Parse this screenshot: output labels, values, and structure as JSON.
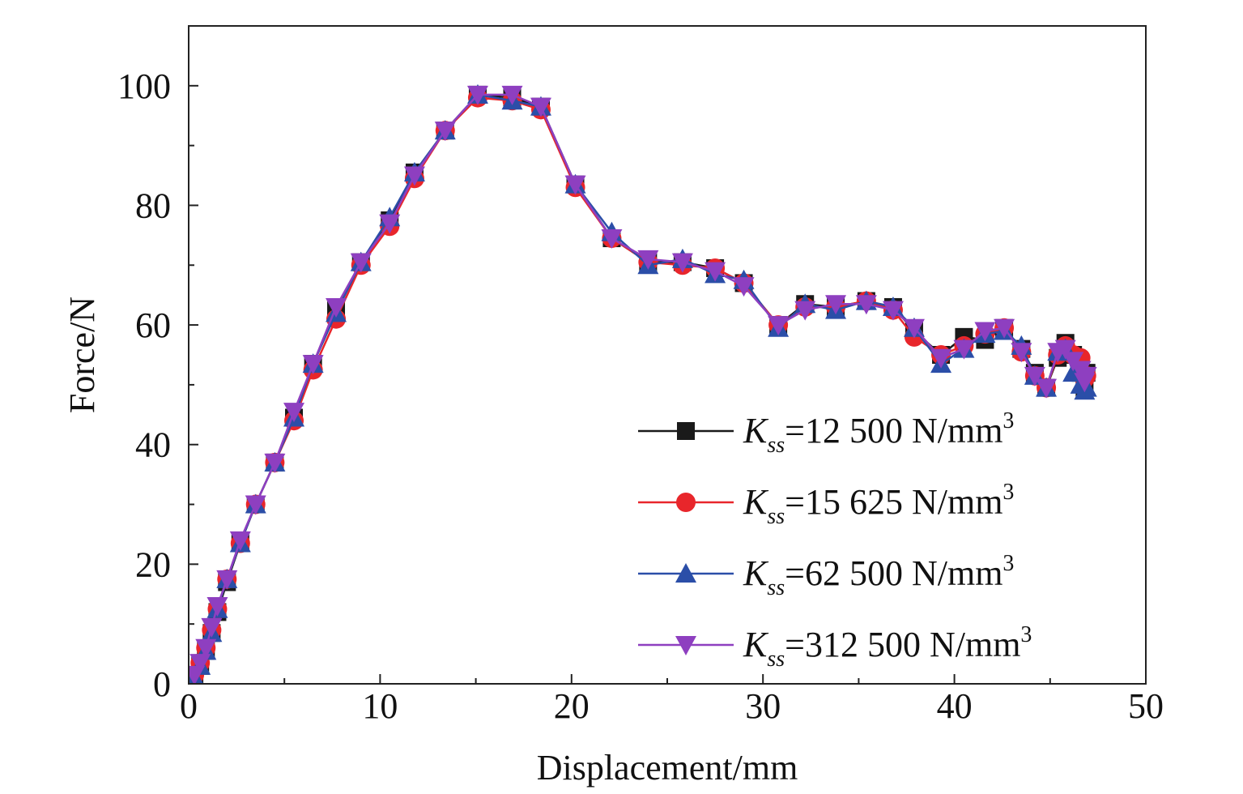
{
  "chart_data": {
    "type": "line",
    "title": "",
    "xlabel": "Displacement/mm",
    "ylabel": "Force/N",
    "xlim": [
      0,
      50
    ],
    "ylim": [
      0,
      110
    ],
    "xticks": [
      0,
      10,
      20,
      30,
      40,
      50
    ],
    "yticks": [
      0,
      20,
      40,
      60,
      80,
      100
    ],
    "legend_position": "bottom-right",
    "series": [
      {
        "name": "Kss=12 500 N/mm3",
        "label_k": "K",
        "label_sub": "ss",
        "label_rest": "=12 500 N/mm",
        "label_sup": "3",
        "color": "#1a1a1a",
        "marker": "square",
        "x": [
          0.3,
          0.6,
          0.9,
          1.2,
          1.5,
          2.0,
          2.7,
          3.5,
          4.5,
          5.5,
          6.5,
          7.7,
          9.0,
          10.5,
          11.8,
          13.4,
          15.1,
          16.9,
          18.4,
          20.2,
          22.1,
          24.0,
          25.8,
          27.5,
          29.0,
          30.8,
          32.2,
          33.8,
          35.4,
          36.8,
          37.9,
          39.3,
          40.5,
          41.6,
          42.6,
          43.5,
          44.2,
          44.8,
          45.4,
          45.8,
          46.2,
          46.6,
          46.8,
          46.9
        ],
        "y": [
          1.0,
          3.0,
          5.5,
          8.5,
          12.0,
          17.0,
          23.5,
          30.0,
          37.0,
          44.5,
          53.5,
          62.5,
          70.5,
          77.5,
          85.5,
          92.5,
          98.5,
          98.0,
          96.5,
          83.5,
          74.5,
          70.5,
          70.5,
          69.5,
          67.0,
          60.0,
          63.5,
          63.0,
          64.0,
          63.0,
          59.0,
          55.0,
          58.0,
          57.5,
          59.5,
          56.0,
          52.0,
          49.5,
          54.5,
          57.0,
          55.0,
          52.0,
          49.5,
          52.0
        ]
      },
      {
        "name": "Kss=15 625 N/mm3",
        "label_k": "K",
        "label_sub": "ss",
        "label_rest": "=15 625 N/mm",
        "label_sup": "3",
        "color": "#e8262b",
        "marker": "circle",
        "x": [
          0.3,
          0.6,
          0.9,
          1.2,
          1.5,
          2.0,
          2.7,
          3.5,
          4.5,
          5.5,
          6.5,
          7.7,
          9.0,
          10.5,
          11.8,
          13.4,
          15.1,
          16.9,
          18.4,
          20.2,
          22.1,
          24.0,
          25.8,
          27.5,
          29.0,
          30.8,
          32.2,
          33.8,
          35.4,
          36.8,
          37.9,
          39.3,
          40.5,
          41.6,
          42.6,
          43.5,
          44.2,
          44.8,
          45.4,
          45.8,
          46.2,
          46.6,
          46.8,
          46.9
        ],
        "y": [
          1.5,
          3.5,
          6.0,
          9.0,
          12.5,
          17.5,
          23.5,
          30.0,
          37.0,
          44.0,
          52.5,
          61.0,
          70.0,
          76.5,
          84.5,
          92.5,
          98.0,
          97.5,
          96.0,
          83.0,
          74.5,
          70.5,
          70.0,
          69.5,
          67.0,
          60.0,
          63.0,
          63.0,
          64.0,
          62.5,
          58.0,
          55.0,
          56.5,
          58.5,
          59.5,
          55.5,
          51.5,
          49.5,
          55.0,
          56.5,
          55.0,
          54.5,
          51.0,
          51.5
        ]
      },
      {
        "name": "Kss=62 500 N/mm3",
        "label_k": "K",
        "label_sub": "ss",
        "label_rest": "=62 500 N/mm",
        "label_sup": "3",
        "color": "#2b4ea8",
        "marker": "triangle-up",
        "x": [
          0.3,
          0.6,
          0.9,
          1.2,
          1.5,
          2.0,
          2.7,
          3.5,
          4.5,
          5.5,
          6.5,
          7.7,
          9.0,
          10.5,
          11.8,
          13.4,
          15.1,
          16.9,
          18.4,
          20.2,
          22.1,
          24.0,
          25.8,
          27.5,
          29.0,
          30.8,
          32.2,
          33.8,
          35.4,
          36.8,
          37.9,
          39.3,
          40.5,
          41.6,
          42.6,
          43.5,
          44.2,
          44.8,
          45.4,
          45.8,
          46.2,
          46.6,
          46.8,
          46.9
        ],
        "y": [
          1.0,
          3.0,
          5.5,
          8.5,
          12.5,
          17.5,
          23.5,
          30.0,
          37.0,
          44.5,
          53.5,
          62.0,
          70.5,
          78.0,
          85.5,
          92.5,
          98.5,
          97.5,
          96.5,
          83.5,
          75.5,
          70.0,
          71.0,
          68.5,
          67.5,
          59.5,
          63.5,
          62.5,
          64.0,
          63.0,
          59.5,
          53.5,
          56.0,
          58.5,
          59.0,
          56.5,
          51.5,
          49.5,
          55.5,
          56.0,
          52.0,
          50.0,
          49.0,
          49.5
        ]
      },
      {
        "name": "Kss=312 500 N/mm3",
        "label_k": "K",
        "label_sub": "ss",
        "label_rest": "=312 500 N/mm",
        "label_sup": "3",
        "color": "#8e3fc0",
        "marker": "triangle-down",
        "x": [
          0.3,
          0.6,
          0.9,
          1.2,
          1.5,
          2.0,
          2.7,
          3.5,
          4.5,
          5.5,
          6.5,
          7.7,
          9.0,
          10.5,
          11.8,
          13.4,
          15.1,
          16.9,
          18.4,
          20.2,
          22.1,
          24.0,
          25.8,
          27.5,
          29.0,
          30.8,
          32.2,
          33.8,
          35.4,
          36.8,
          37.9,
          39.3,
          40.5,
          41.6,
          42.6,
          43.5,
          44.2,
          44.8,
          45.4,
          45.8,
          46.2,
          46.6,
          46.8,
          46.9
        ],
        "y": [
          1.5,
          3.5,
          6.0,
          9.5,
          13.0,
          17.5,
          24.0,
          30.0,
          37.0,
          45.5,
          53.5,
          63.0,
          70.5,
          77.0,
          85.0,
          92.5,
          98.5,
          98.5,
          96.5,
          83.5,
          74.5,
          71.0,
          70.5,
          69.0,
          66.5,
          60.0,
          62.5,
          63.5,
          63.5,
          62.5,
          59.5,
          54.5,
          56.0,
          59.0,
          59.5,
          55.5,
          51.5,
          49.5,
          55.5,
          56.0,
          54.0,
          52.5,
          50.5,
          51.5
        ]
      }
    ]
  }
}
